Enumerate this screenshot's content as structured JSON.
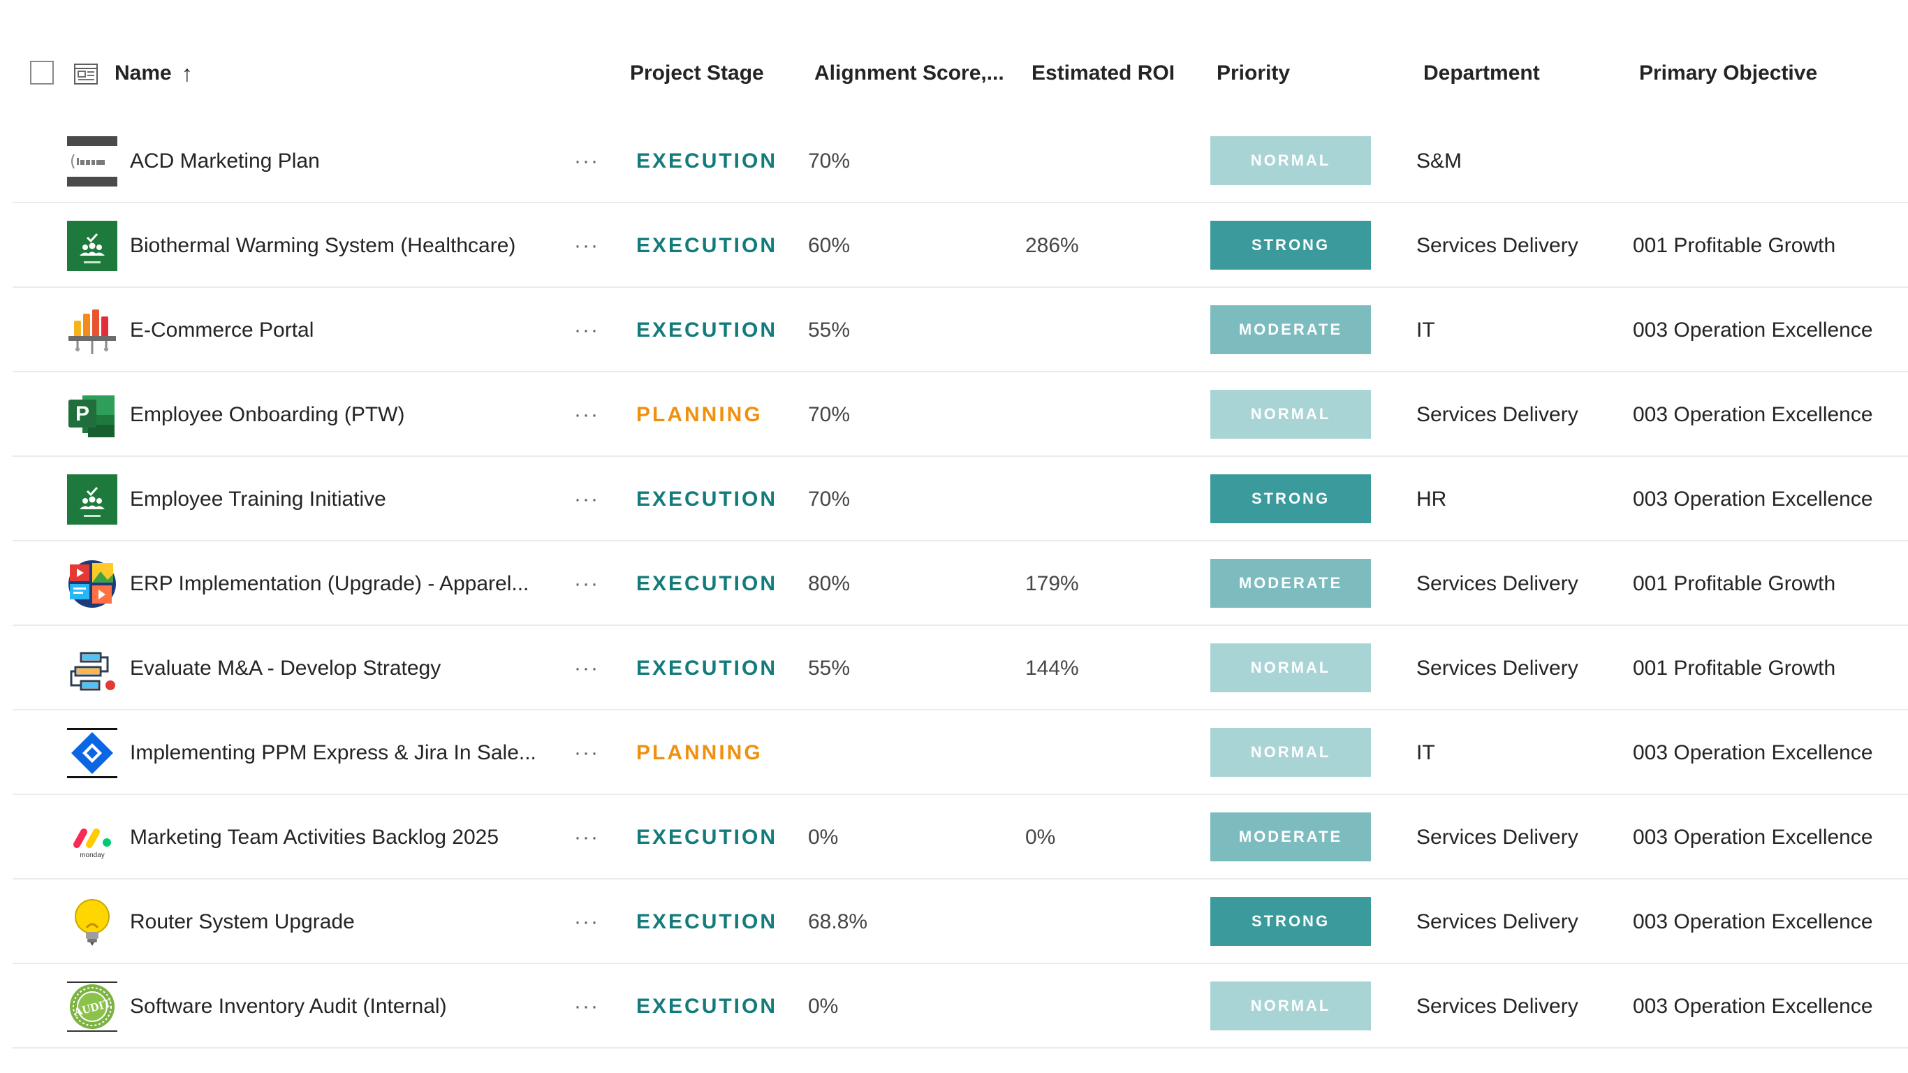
{
  "header": {
    "name": "Name",
    "sort_arrow": "↑",
    "project_stage": "Project Stage",
    "alignment_score": "Alignment Score,...",
    "estimated_roi": "Estimated ROI",
    "priority": "Priority",
    "department": "Department",
    "primary_objective": "Primary Objective"
  },
  "colors": {
    "execution": "#137b7b",
    "planning": "#f0900f",
    "priority_normal": "#a9d4d6",
    "priority_strong": "#3b9a9c",
    "priority_moderate": "#7cbcbf"
  },
  "rows": [
    {
      "icon": "beam-logo-icon",
      "name": "ACD Marketing Plan",
      "more": "···",
      "stage": "EXECUTION",
      "alignment": "70%",
      "roi": "",
      "priority": "NORMAL",
      "department": "S&M",
      "objective": ""
    },
    {
      "icon": "planner-icon",
      "name": "Biothermal Warming System (Healthcare)",
      "more": "···",
      "stage": "EXECUTION",
      "alignment": "60%",
      "roi": "286%",
      "priority": "STRONG",
      "department": "Services Delivery",
      "objective": "001 Profitable Growth"
    },
    {
      "icon": "ecommerce-chart-icon",
      "name": "E-Commerce Portal",
      "more": "···",
      "stage": "EXECUTION",
      "alignment": "55%",
      "roi": "",
      "priority": "MODERATE",
      "department": "IT",
      "objective": "003 Operation Excellence"
    },
    {
      "icon": "project-icon",
      "name": "Employee Onboarding (PTW)",
      "more": "···",
      "stage": "PLANNING",
      "alignment": "70%",
      "roi": "",
      "priority": "NORMAL",
      "department": "Services Delivery",
      "objective": "003 Operation Excellence"
    },
    {
      "icon": "planner-icon",
      "name": "Employee Training Initiative",
      "more": "···",
      "stage": "EXECUTION",
      "alignment": "70%",
      "roi": "",
      "priority": "STRONG",
      "department": "HR",
      "objective": "003 Operation Excellence"
    },
    {
      "icon": "media-collage-icon",
      "name": "ERP Implementation (Upgrade) - Apparel...",
      "more": "···",
      "stage": "EXECUTION",
      "alignment": "80%",
      "roi": "179%",
      "priority": "MODERATE",
      "department": "Services Delivery",
      "objective": "001 Profitable Growth"
    },
    {
      "icon": "flowchart-icon",
      "name": "Evaluate M&A - Develop Strategy",
      "more": "···",
      "stage": "EXECUTION",
      "alignment": "55%",
      "roi": "144%",
      "priority": "NORMAL",
      "department": "Services Delivery",
      "objective": "001 Profitable Growth"
    },
    {
      "icon": "jira-icon",
      "name": "Implementing PPM Express & Jira In Sale...",
      "more": "···",
      "stage": "PLANNING",
      "alignment": "",
      "roi": "",
      "priority": "NORMAL",
      "department": "IT",
      "objective": "003 Operation Excellence"
    },
    {
      "icon": "monday-logo-icon",
      "name": "Marketing Team Activities Backlog 2025",
      "more": "···",
      "stage": "EXECUTION",
      "alignment": "0%",
      "roi": "0%",
      "priority": "MODERATE",
      "department": "Services Delivery",
      "objective": "003 Operation Excellence"
    },
    {
      "icon": "lightbulb-icon",
      "name": "Router System Upgrade",
      "more": "···",
      "stage": "EXECUTION",
      "alignment": "68.8%",
      "roi": "",
      "priority": "STRONG",
      "department": "Services Delivery",
      "objective": "003 Operation Excellence"
    },
    {
      "icon": "audit-stamp-icon",
      "name": "Software Inventory Audit (Internal)",
      "more": "···",
      "stage": "EXECUTION",
      "alignment": "0%",
      "roi": "",
      "priority": "NORMAL",
      "department": "Services Delivery",
      "objective": "003 Operation Excellence"
    }
  ]
}
